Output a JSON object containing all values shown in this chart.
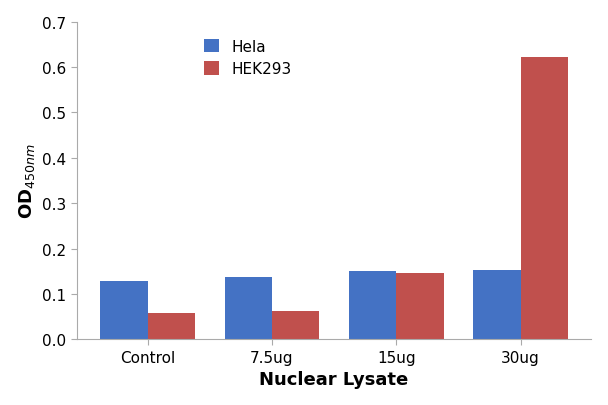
{
  "categories": [
    "Control",
    "7.5ug",
    "15ug",
    "30ug"
  ],
  "hela_values": [
    0.128,
    0.138,
    0.15,
    0.153
  ],
  "hek293_values": [
    0.057,
    0.063,
    0.146,
    0.623
  ],
  "hela_color": "#4472C4",
  "hek293_color": "#C0504D",
  "xlabel": "Nuclear Lysate",
  "ylabel": "OD$_{450nm}$",
  "ylim": [
    0,
    0.7
  ],
  "yticks": [
    0,
    0.1,
    0.2,
    0.3,
    0.4,
    0.5,
    0.6,
    0.7
  ],
  "legend_labels": [
    "Hela",
    "HEK293"
  ],
  "bar_width": 0.38,
  "background_color": "#ffffff",
  "axis_fontsize": 13,
  "tick_fontsize": 11,
  "legend_fontsize": 11
}
